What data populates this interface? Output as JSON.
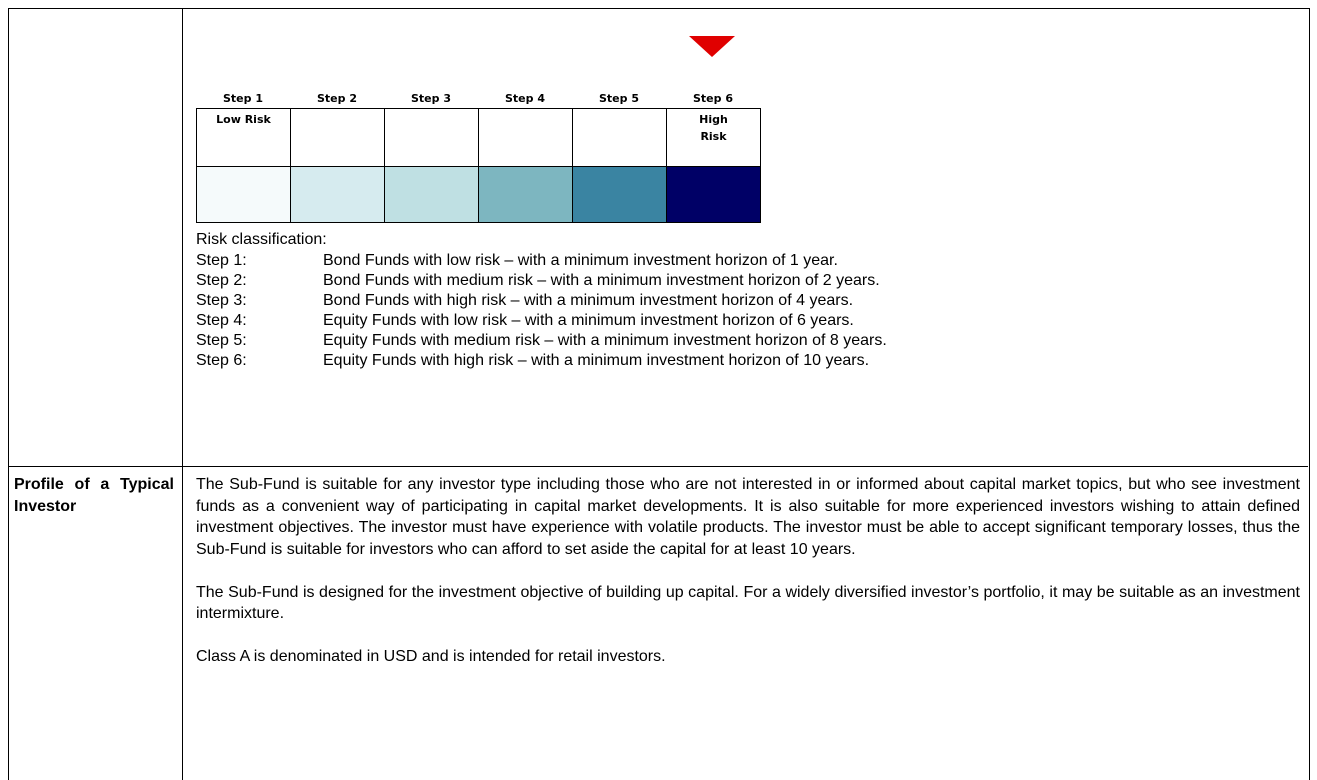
{
  "risk_scale": {
    "steps": [
      {
        "name": "Step 1",
        "label": "Low Risk"
      },
      {
        "name": "Step 2"
      },
      {
        "name": "Step 3"
      },
      {
        "name": "Step 4"
      },
      {
        "name": "Step 5"
      },
      {
        "name": "Step 6",
        "label": "High Risk"
      }
    ]
  },
  "classification": {
    "title": "Risk classification:",
    "items": [
      {
        "step": "Step 1:",
        "text": "Bond Funds with low risk – with a minimum investment horizon of 1 year."
      },
      {
        "step": "Step 2:",
        "text": "Bond Funds with medium risk – with a minimum investment horizon of 2 years."
      },
      {
        "step": "Step 3:",
        "text": "Bond Funds with high risk – with a minimum investment horizon of 4 years."
      },
      {
        "step": "Step 4:",
        "text": "Equity Funds with low risk – with a minimum investment horizon of 6 years."
      },
      {
        "step": "Step 5:",
        "text": "Equity Funds with medium risk – with a minimum investment horizon of 8 years."
      },
      {
        "step": "Step 6:",
        "text": "Equity Funds with high risk – with a minimum investment horizon of 10 years."
      }
    ]
  },
  "profile": {
    "heading": "Profile of a Typical Investor",
    "paragraphs": [
      "The Sub-Fund is suitable for any investor type including those who are not interested in or informed about capital market topics, but who see investment funds as a convenient way of participating in capital market developments. It is also suitable for more experienced investors wishing to attain defined investment objectives. The investor must have experience with volatile products. The investor must be able to accept significant temporary losses, thus the Sub-Fund is suitable for investors who can afford to set aside the capital for at least 10 years.",
      "The Sub-Fund is designed for the investment objective of building up capital. For a widely diversified investor’s portfolio, it may be suitable as an investment intermixture.",
      "Class A is denominated in USD and is intended for retail investors."
    ]
  }
}
